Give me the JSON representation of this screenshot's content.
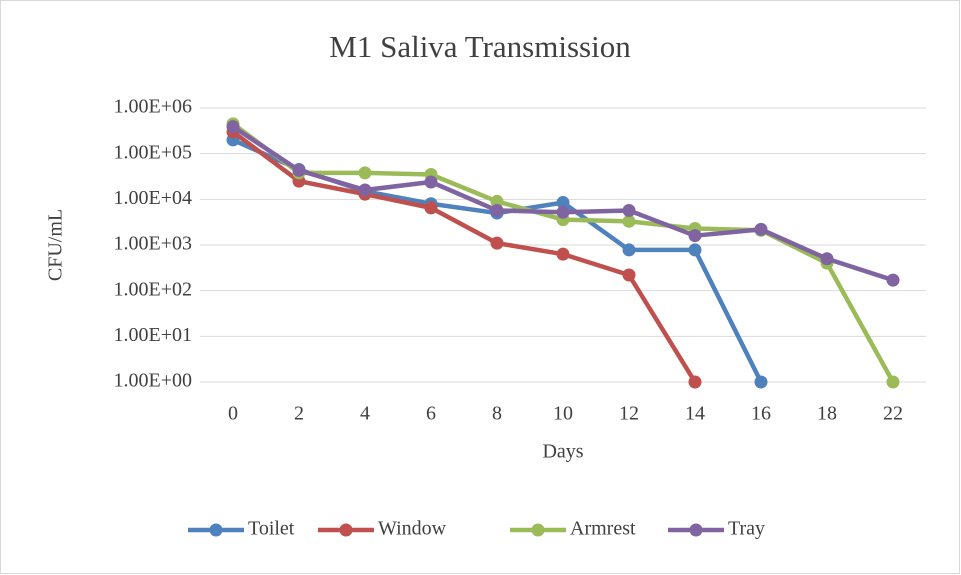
{
  "chart_data": {
    "type": "line",
    "title": "M1 Saliva Transmission",
    "x_label": "Days",
    "y_label": "CFU/mL",
    "categories": [
      "0",
      "2",
      "4",
      "6",
      "8",
      "10",
      "12",
      "14",
      "16",
      "18",
      "22"
    ],
    "series": [
      {
        "name": "Toilet",
        "color": "#4f81bd",
        "values": [
          200000,
          45000,
          15000,
          8000,
          5000,
          8500,
          780,
          780,
          1,
          null,
          null
        ]
      },
      {
        "name": "Window",
        "color": "#c0504d",
        "values": [
          300000,
          25000,
          13000,
          6500,
          1100,
          630,
          220,
          1,
          null,
          null,
          null
        ]
      },
      {
        "name": "Armrest",
        "color": "#9bbb59",
        "values": [
          450000,
          38000,
          38000,
          35000,
          9000,
          3600,
          3300,
          2300,
          2100,
          400,
          1
        ]
      },
      {
        "name": "Tray",
        "color": "#8064a2",
        "values": [
          390000,
          43000,
          16000,
          24000,
          5700,
          5200,
          5700,
          1600,
          2200,
          500,
          170
        ]
      }
    ],
    "ylim": [
      1,
      1000000
    ],
    "yticks": [
      {
        "value": 1,
        "label": "1.00E+00"
      },
      {
        "value": 10,
        "label": "1.00E+01"
      },
      {
        "value": 100,
        "label": "1.00E+02"
      },
      {
        "value": 1000,
        "label": "1.00E+03"
      },
      {
        "value": 10000,
        "label": "1.00E+04"
      },
      {
        "value": 100000,
        "label": "1.00E+05"
      },
      {
        "value": 1000000,
        "label": "1.00E+06"
      }
    ],
    "log_scale": true,
    "grid": true,
    "legend": "bottom"
  }
}
